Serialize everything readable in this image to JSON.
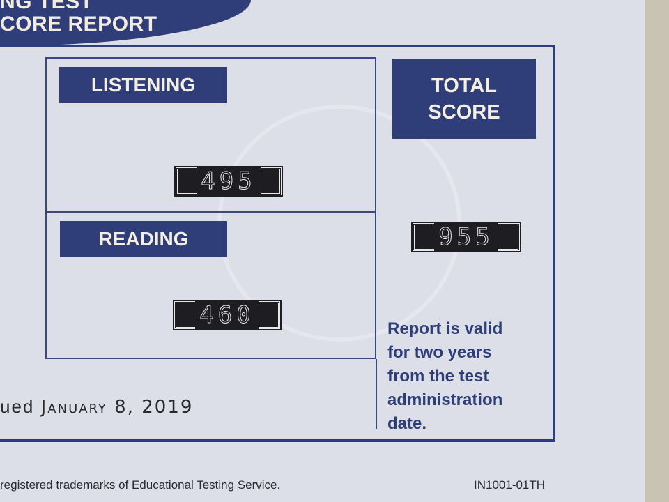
{
  "header": {
    "title_line1": "NG TEST",
    "title_line2": "CORE REPORT"
  },
  "sections": [
    {
      "label": "LISTENING",
      "score": "495"
    },
    {
      "label": "READING",
      "score": "460"
    }
  ],
  "total": {
    "label_line1": "TOTAL",
    "label_line2": "SCORE",
    "score": "955"
  },
  "validity_note": [
    "Report is valid",
    "for two years",
    "from the test",
    "administration",
    "date."
  ],
  "issued": {
    "prefix": "ued",
    "date": "January 8, 2019"
  },
  "footer": {
    "trademark": "registered trademarks of Educational Testing Service.",
    "form_code": "IN1001-01TH"
  },
  "colors": {
    "navy": "#2f3e78",
    "paper": "#dcdee8"
  }
}
